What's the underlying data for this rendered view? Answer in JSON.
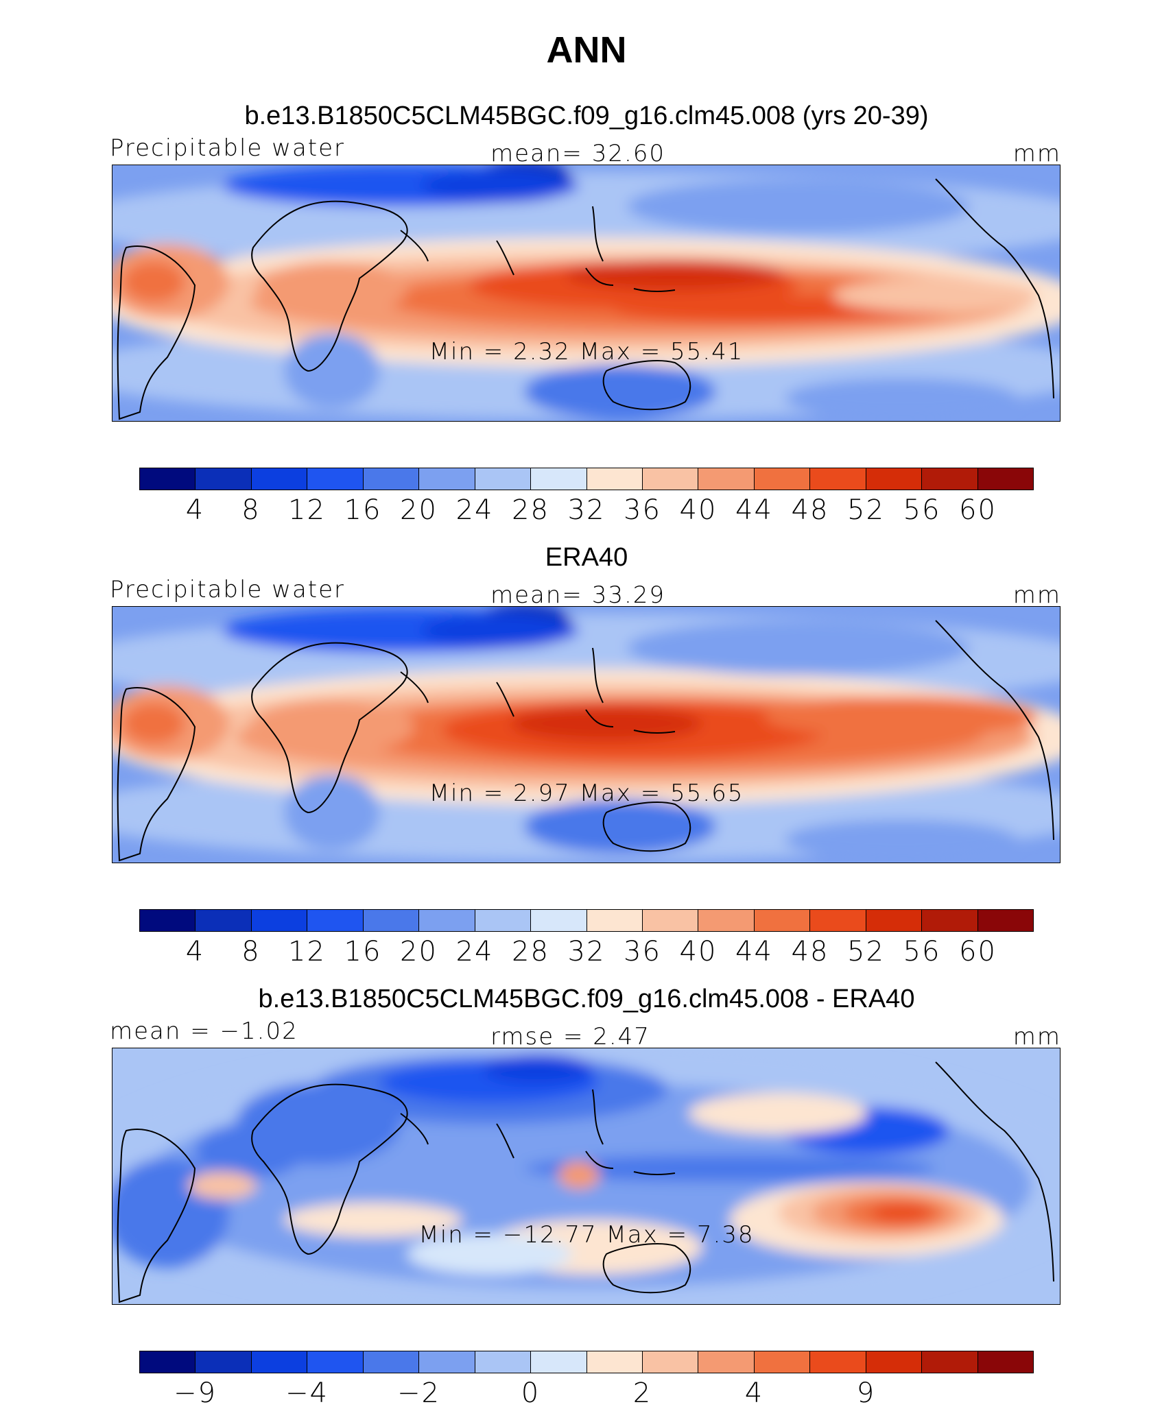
{
  "title": "ANN",
  "chart_data": [
    {
      "type": "heatmap",
      "title": "b.e13.B1850C5CLM45BGC.f09_g16.clm45.008 (yrs 20-39)",
      "left_label": "Precipitable water",
      "center_label": "mean=   32.60",
      "right_label": "mm",
      "stats": "Min  =     2.32  Max  =    55.41",
      "colorbar": {
        "ticks": [
          "4",
          "8",
          "12",
          "16",
          "20",
          "24",
          "28",
          "32",
          "36",
          "40",
          "44",
          "48",
          "52",
          "56",
          "60"
        ],
        "colors": [
          "#000a7e",
          "#0b2fb8",
          "#0c3fe0",
          "#1f55f0",
          "#4a78ea",
          "#7ca0f0",
          "#aac5f5",
          "#d7e7fa",
          "#fde5d1",
          "#f9c2a4",
          "#f49a72",
          "#f0713f",
          "#ea4b1c",
          "#d52d08",
          "#b11b08",
          "#8a0608"
        ]
      },
      "mean": 32.6,
      "min": 2.32,
      "max": 55.41,
      "units": "mm"
    },
    {
      "type": "heatmap",
      "title": "ERA40",
      "left_label": "Precipitable water",
      "center_label": "mean=   33.29",
      "right_label": "mm",
      "stats": "Min  =     2.97  Max  =    55.65",
      "colorbar": {
        "ticks": [
          "4",
          "8",
          "12",
          "16",
          "20",
          "24",
          "28",
          "32",
          "36",
          "40",
          "44",
          "48",
          "52",
          "56",
          "60"
        ],
        "colors": [
          "#000a7e",
          "#0b2fb8",
          "#0c3fe0",
          "#1f55f0",
          "#4a78ea",
          "#7ca0f0",
          "#aac5f5",
          "#d7e7fa",
          "#fde5d1",
          "#f9c2a4",
          "#f49a72",
          "#f0713f",
          "#ea4b1c",
          "#d52d08",
          "#b11b08",
          "#8a0608"
        ]
      },
      "mean": 33.29,
      "min": 2.97,
      "max": 55.65,
      "units": "mm"
    },
    {
      "type": "heatmap",
      "title": "b.e13.B1850C5CLM45BGC.f09_g16.clm45.008 - ERA40",
      "left_label": "mean =   −1.02",
      "center_label": "rmse =     2.47",
      "right_label": "mm",
      "stats": "Min  =  −12.77  Max  =      7.38",
      "colorbar": {
        "ticks": [
          "−9",
          "−4",
          "−2",
          "0",
          "2",
          "4",
          "9"
        ],
        "tick_boundaries": [
          1,
          3,
          5,
          7,
          9,
          11,
          13
        ],
        "colors": [
          "#000a7e",
          "#0b2fb8",
          "#0c3fe0",
          "#1f55f0",
          "#4a78ea",
          "#7ca0f0",
          "#aac5f5",
          "#d7e7fa",
          "#fde5d1",
          "#f9c2a4",
          "#f49a72",
          "#f0713f",
          "#ea4b1c",
          "#d52d08",
          "#b11b08",
          "#8a0608"
        ]
      },
      "mean": -1.02,
      "rmse": 2.47,
      "min": -12.77,
      "max": 7.38,
      "units": "mm"
    }
  ]
}
